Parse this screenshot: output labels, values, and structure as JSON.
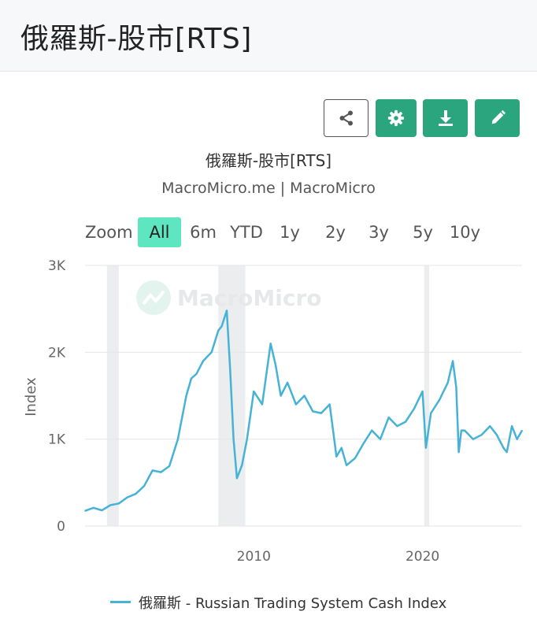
{
  "page": {
    "title": "俄羅斯-股市[RTS]"
  },
  "toolbar": {
    "buttons": [
      {
        "name": "share",
        "icon": "share-icon"
      },
      {
        "name": "settings",
        "icon": "gear-icon"
      },
      {
        "name": "download",
        "icon": "download-icon"
      },
      {
        "name": "edit",
        "icon": "pencil-icon"
      }
    ],
    "accent": "#2aa57e"
  },
  "range_selector": {
    "zoom_label": "Zoom",
    "options": [
      "All",
      "6m",
      "YTD",
      "1y",
      "2y",
      "3y",
      "5y",
      "10y"
    ],
    "selected": "All",
    "selected_color": "#5ee6c0"
  },
  "watermark": {
    "text": "MacroMicro"
  },
  "chart_data": {
    "type": "line",
    "title": "俄羅斯-股市[RTS]",
    "subtitle": "MacroMicro.me | MacroMicro",
    "xlabel": "",
    "ylabel": "Index",
    "xlim": [
      2000.0,
      2025.9
    ],
    "ylim": [
      0,
      3000
    ],
    "y_ticks": [
      0,
      1000,
      2000,
      3000
    ],
    "y_tick_labels": [
      "0",
      "1K",
      "2K",
      "3K"
    ],
    "x_ticks": [
      2010,
      2020
    ],
    "x_tick_labels": [
      "2010",
      "2020"
    ],
    "grid": true,
    "legend_position": "bottom",
    "recession_bands": [
      [
        2001.3,
        2002.0
      ],
      [
        2007.9,
        2009.5
      ],
      [
        2020.1,
        2020.4
      ]
    ],
    "series": [
      {
        "name": "俄羅斯 - Russian Trading System Cash Index",
        "color": "#45b2d6",
        "x": [
          2000.0,
          2000.5,
          2001.0,
          2001.5,
          2002.0,
          2002.5,
          2003.0,
          2003.5,
          2004.0,
          2004.5,
          2005.0,
          2005.5,
          2006.0,
          2006.3,
          2006.6,
          2007.0,
          2007.5,
          2007.9,
          2008.1,
          2008.4,
          2008.6,
          2008.8,
          2009.0,
          2009.3,
          2009.6,
          2010.0,
          2010.5,
          2011.0,
          2011.3,
          2011.6,
          2012.0,
          2012.5,
          2013.0,
          2013.5,
          2014.0,
          2014.5,
          2014.9,
          2015.2,
          2015.5,
          2016.0,
          2016.5,
          2017.0,
          2017.5,
          2018.0,
          2018.5,
          2019.0,
          2019.5,
          2020.0,
          2020.2,
          2020.5,
          2021.0,
          2021.5,
          2021.8,
          2022.0,
          2022.15,
          2022.3,
          2022.5,
          2023.0,
          2023.5,
          2024.0,
          2024.4,
          2024.8,
          2025.0,
          2025.3,
          2025.6,
          2025.9
        ],
        "values": [
          175,
          210,
          180,
          240,
          260,
          330,
          370,
          460,
          640,
          620,
          690,
          1000,
          1500,
          1700,
          1750,
          1900,
          2000,
          2250,
          2300,
          2480,
          1800,
          1000,
          550,
          700,
          1000,
          1550,
          1400,
          2100,
          1850,
          1500,
          1650,
          1400,
          1500,
          1320,
          1300,
          1400,
          800,
          900,
          700,
          780,
          950,
          1100,
          1000,
          1250,
          1150,
          1200,
          1350,
          1550,
          900,
          1300,
          1450,
          1650,
          1900,
          1600,
          850,
          1100,
          1100,
          1000,
          1050,
          1150,
          1050,
          900,
          850,
          1150,
          1000,
          1100
        ]
      }
    ]
  }
}
